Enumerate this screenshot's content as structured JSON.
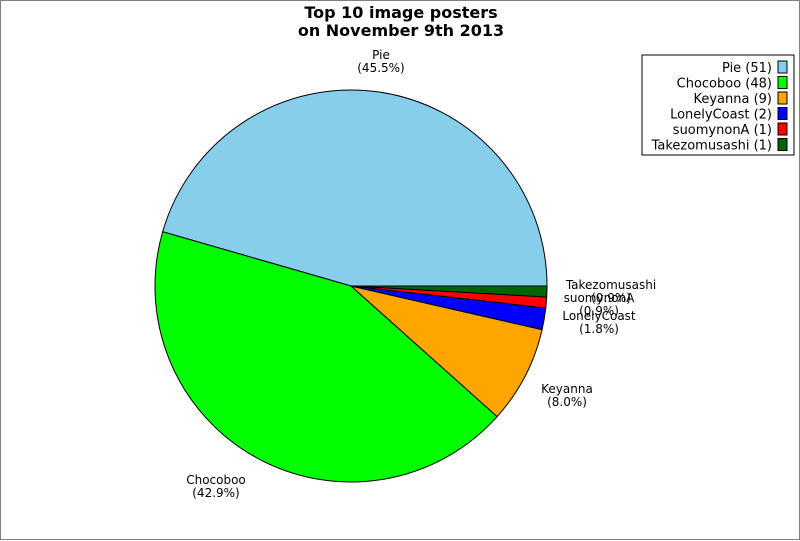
{
  "chart_data": {
    "type": "pie",
    "title_lines": [
      "Top 10 image posters",
      "on November 9th 2013"
    ],
    "slices": [
      {
        "name": "Pie",
        "count": 51,
        "percent": "45.5%",
        "color": "#87ceeb"
      },
      {
        "name": "Chocoboo",
        "count": 48,
        "percent": "42.9%",
        "color": "#00ff00"
      },
      {
        "name": "Keyanna",
        "count": 9,
        "percent": "8.0%",
        "color": "#ffa500"
      },
      {
        "name": "LonelyCoast",
        "count": 2,
        "percent": "1.8%",
        "color": "#0000ff"
      },
      {
        "name": "suomynonA",
        "count": 1,
        "percent": "0.9%",
        "color": "#ff0000"
      },
      {
        "name": "Takezomusashi",
        "count": 1,
        "percent": "0.9%",
        "color": "#006400"
      }
    ],
    "legend_entries": [
      "Pie (51)",
      "Chocoboo (48)",
      "Keyanna (9)",
      "LonelyCoast (2)",
      "suomynonA (1)",
      "Takezomusashi (1)"
    ],
    "legend_position": "top-right",
    "start_angle": "3 o'clock",
    "direction": "counterclockwise"
  }
}
